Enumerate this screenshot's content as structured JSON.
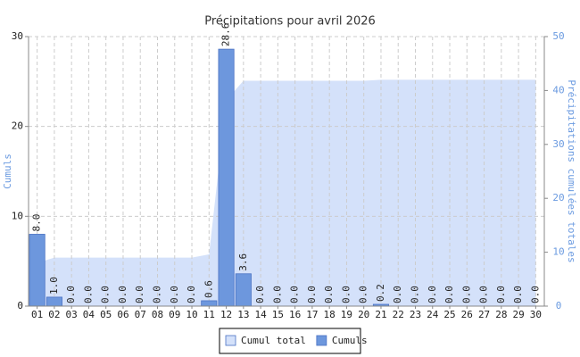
{
  "chart_data": {
    "type": "bar",
    "title": "Précipitations pour avril 2026",
    "ylabel": "Cumuls",
    "y2label": "Précipitations cumulées totales",
    "categories": [
      "01",
      "02",
      "03",
      "04",
      "05",
      "06",
      "07",
      "08",
      "09",
      "10",
      "11",
      "12",
      "13",
      "14",
      "15",
      "16",
      "17",
      "18",
      "19",
      "20",
      "21",
      "22",
      "23",
      "24",
      "25",
      "26",
      "27",
      "28",
      "29",
      "30"
    ],
    "series": [
      {
        "name": "Cumul total",
        "type": "area",
        "axis": "y2",
        "color": "#d4e1fa",
        "values": [
          8,
          9,
          9,
          9,
          9,
          9,
          9,
          9,
          9,
          9,
          9.6,
          38.2,
          41.8,
          41.8,
          41.8,
          41.8,
          41.8,
          41.8,
          41.8,
          41.8,
          42,
          42,
          42,
          42,
          42,
          42,
          42,
          42,
          42,
          42
        ]
      },
      {
        "name": "Cumuls",
        "type": "bar",
        "color": "#6d97dd",
        "values": [
          8,
          1,
          0,
          0,
          0,
          0,
          0,
          0,
          0,
          0,
          0.6,
          28.6,
          3.6,
          0,
          0,
          0,
          0,
          0,
          0,
          0,
          0.2,
          0,
          0,
          0,
          0,
          0,
          0,
          0,
          0,
          0
        ],
        "value_labels": [
          "8.0",
          "1.0",
          "0.0",
          "0.0",
          "0.0",
          "0.0",
          "0.0",
          "0.0",
          "0.0",
          "0.0",
          "0.6",
          "28.6",
          "3.6",
          "0.0",
          "0.0",
          "0.0",
          "0.0",
          "0.0",
          "0.0",
          "0.0",
          "0.2",
          "0.0",
          "0.0",
          "0.0",
          "0.0",
          "0.0",
          "0.0",
          "0.0",
          "0.0",
          "0.0"
        ]
      }
    ],
    "ylim": [
      0,
      30
    ],
    "yticks": [
      0,
      10,
      20,
      30
    ],
    "y2lim": [
      0,
      50
    ],
    "y2ticks": [
      0,
      10,
      20,
      30,
      40,
      50
    ],
    "grid": true,
    "legend": "bottom"
  }
}
